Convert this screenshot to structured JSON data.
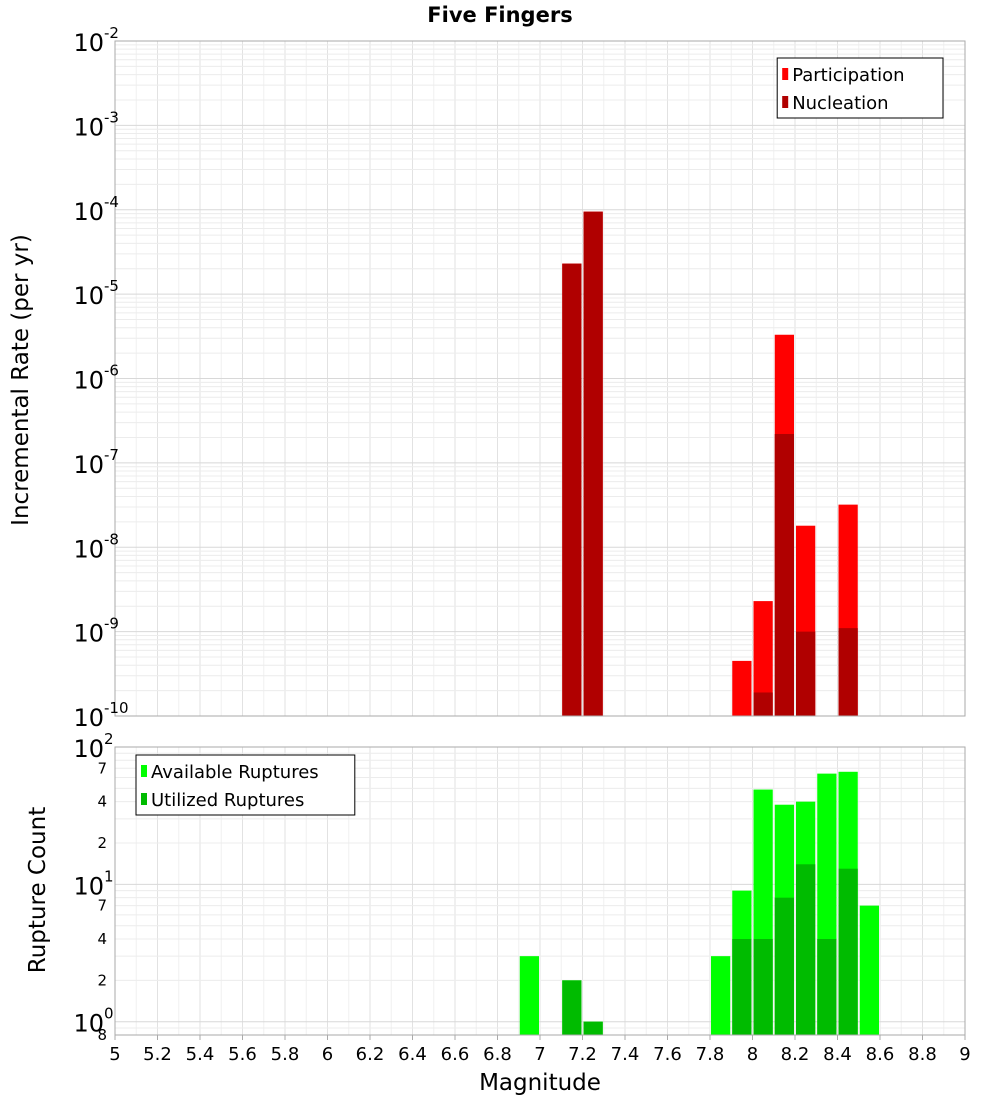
{
  "chart_data": [
    {
      "type": "bar",
      "title": "Five Fingers",
      "ylabel": "Incremental Rate (per yr)",
      "xlabel": "",
      "xlim": [
        5,
        9
      ],
      "ylim": [
        1e-10,
        0.01
      ],
      "yscale": "log",
      "bin_width": 0.1,
      "grid": true,
      "legend_position": "top-right",
      "y_tick_labels": [
        {
          "value": 0.01,
          "base": "10",
          "exp": "-2"
        },
        {
          "value": 0.001,
          "base": "10",
          "exp": "-3"
        },
        {
          "value": 0.0001,
          "base": "10",
          "exp": "-4"
        },
        {
          "value": 1e-05,
          "base": "10",
          "exp": "-5"
        },
        {
          "value": 1e-06,
          "base": "10",
          "exp": "-6"
        },
        {
          "value": 1e-07,
          "base": "10",
          "exp": "-7"
        },
        {
          "value": 1e-08,
          "base": "10",
          "exp": "-8"
        },
        {
          "value": 1e-09,
          "base": "10",
          "exp": "-9"
        },
        {
          "value": 1e-10,
          "base": "10",
          "exp": "-10"
        }
      ],
      "series": [
        {
          "name": "Participation",
          "color": "#ff0000",
          "points": [
            {
              "x": 7.15,
              "y": 2.3e-05
            },
            {
              "x": 7.25,
              "y": 9.5e-05
            },
            {
              "x": 7.95,
              "y": 4.5e-10
            },
            {
              "x": 8.05,
              "y": 2.3e-09
            },
            {
              "x": 8.15,
              "y": 3.3e-06
            },
            {
              "x": 8.25,
              "y": 1.8e-08
            },
            {
              "x": 8.45,
              "y": 3.2e-08
            }
          ]
        },
        {
          "name": "Nucleation",
          "color": "#b00000",
          "points": [
            {
              "x": 7.15,
              "y": 2.3e-05
            },
            {
              "x": 7.25,
              "y": 9.5e-05
            },
            {
              "x": 8.05,
              "y": 1.9e-10
            },
            {
              "x": 8.15,
              "y": 2.2e-07
            },
            {
              "x": 8.25,
              "y": 1e-09
            },
            {
              "x": 8.45,
              "y": 1.1e-09
            }
          ]
        }
      ]
    },
    {
      "type": "bar",
      "title": "",
      "ylabel": "Rupture Count",
      "xlabel": "Magnitude",
      "xlim": [
        5,
        9
      ],
      "ylim": [
        0.8,
        100
      ],
      "yscale": "log",
      "bin_width": 0.1,
      "grid": true,
      "legend_position": "top-left",
      "x_ticks": [
        "5",
        "5.2",
        "5.4",
        "5.6",
        "5.8",
        "6",
        "6.2",
        "6.4",
        "6.6",
        "6.8",
        "7",
        "7.2",
        "7.4",
        "7.6",
        "7.8",
        "8",
        "8.2",
        "8.4",
        "8.6",
        "8.8",
        "9"
      ],
      "y_tick_labels": [
        {
          "value": 100,
          "base": "10",
          "exp": "2"
        },
        {
          "value": 70,
          "base": "",
          "exp": "7"
        },
        {
          "value": 40,
          "base": "",
          "exp": "4"
        },
        {
          "value": 20,
          "base": "",
          "exp": "2"
        },
        {
          "value": 10,
          "base": "10",
          "exp": "1"
        },
        {
          "value": 7,
          "base": "",
          "exp": "7"
        },
        {
          "value": 4,
          "base": "",
          "exp": "4"
        },
        {
          "value": 2,
          "base": "",
          "exp": "2"
        },
        {
          "value": 1,
          "base": "10",
          "exp": "0"
        },
        {
          "value": 0.8,
          "base": "",
          "exp": "8"
        }
      ],
      "series": [
        {
          "name": "Available Ruptures",
          "color": "#00ff00",
          "points": [
            {
              "x": 6.95,
              "y": 3
            },
            {
              "x": 7.15,
              "y": 2
            },
            {
              "x": 7.25,
              "y": 1
            },
            {
              "x": 7.85,
              "y": 3
            },
            {
              "x": 7.95,
              "y": 9
            },
            {
              "x": 8.05,
              "y": 49
            },
            {
              "x": 8.15,
              "y": 38
            },
            {
              "x": 8.25,
              "y": 40
            },
            {
              "x": 8.35,
              "y": 64
            },
            {
              "x": 8.45,
              "y": 66
            },
            {
              "x": 8.55,
              "y": 7
            }
          ]
        },
        {
          "name": "Utilized Ruptures",
          "color": "#00bb00",
          "points": [
            {
              "x": 7.15,
              "y": 2
            },
            {
              "x": 7.25,
              "y": 1
            },
            {
              "x": 7.95,
              "y": 4
            },
            {
              "x": 8.05,
              "y": 4
            },
            {
              "x": 8.15,
              "y": 8
            },
            {
              "x": 8.25,
              "y": 14
            },
            {
              "x": 8.35,
              "y": 4
            },
            {
              "x": 8.45,
              "y": 13
            }
          ]
        }
      ]
    }
  ]
}
